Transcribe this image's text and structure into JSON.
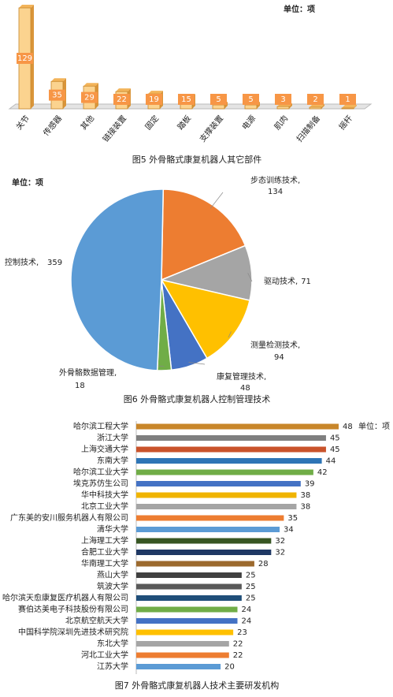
{
  "chart_data": [
    {
      "type": "bar",
      "title": "图5 外骨骼式康复机器人其它部件",
      "unit": "单位：项",
      "categories": [
        "关节",
        "传感器",
        "其他",
        "链接装置",
        "固定",
        "踏板",
        "支撑装置",
        "电源",
        "肌肉",
        "扫描制备",
        "摇杆"
      ],
      "values": [
        129,
        35,
        29,
        22,
        19,
        15,
        5,
        5,
        3,
        2,
        1
      ],
      "color": "#fbd38f"
    },
    {
      "type": "pie",
      "title": "图6 外骨骼式康复机器人控制管理技术",
      "unit": "单位：项",
      "categories": [
        "步态训练技术,",
        "驱动技术,",
        "测量检测技术,",
        "康复管理技术,",
        "外骨骼数据管理,",
        "控制技术,"
      ],
      "values": [
        134,
        71,
        94,
        48,
        18,
        359
      ],
      "colors": [
        "#ed7d31",
        "#a5a5a5",
        "#ffc000",
        "#4472c4",
        "#70ad47",
        "#5b9bd5"
      ]
    },
    {
      "type": "bar",
      "orientation": "horizontal",
      "title": "图7  外骨骼式康复机器人技术主要研发机构",
      "unit": "单位：项",
      "categories": [
        "哈尔滨工程大学",
        "浙江大学",
        "上海交通大学",
        "东南大学",
        "哈尔滨工业大学",
        "埃克苏仿生公司",
        "华中科技大学",
        "北京工业大学",
        "广东美的安川服务机器人有限公司",
        "清华大学",
        "上海理工大学",
        "合肥工业大学",
        "华南理工大学",
        "燕山大学",
        "筑波大学",
        "哈尔滨天愈康复医疗机器人有限公司",
        "赛伯达美电子科技股份有限公司",
        "北京航空航天大学",
        "中国科学院深圳先进技术研究院",
        "东北大学",
        "河北工业大学",
        "江苏大学"
      ],
      "values": [
        48,
        45,
        45,
        44,
        42,
        39,
        38,
        38,
        35,
        34,
        32,
        32,
        28,
        25,
        25,
        25,
        24,
        24,
        23,
        22,
        22,
        20
      ],
      "colors": [
        "#c8862a",
        "#7f7f7f",
        "#c9532b",
        "#2e75b6",
        "#70ad47",
        "#4472c4",
        "#f0b400",
        "#a5a5a5",
        "#ed7d31",
        "#5b9bd5",
        "#375623",
        "#1f3864",
        "#9c6a2e",
        "#404040",
        "#595959",
        "#1f4e79",
        "#70ad47",
        "#4472c4",
        "#ffc000",
        "#a5a5a5",
        "#ed7d31",
        "#5b9bd5"
      ]
    }
  ]
}
